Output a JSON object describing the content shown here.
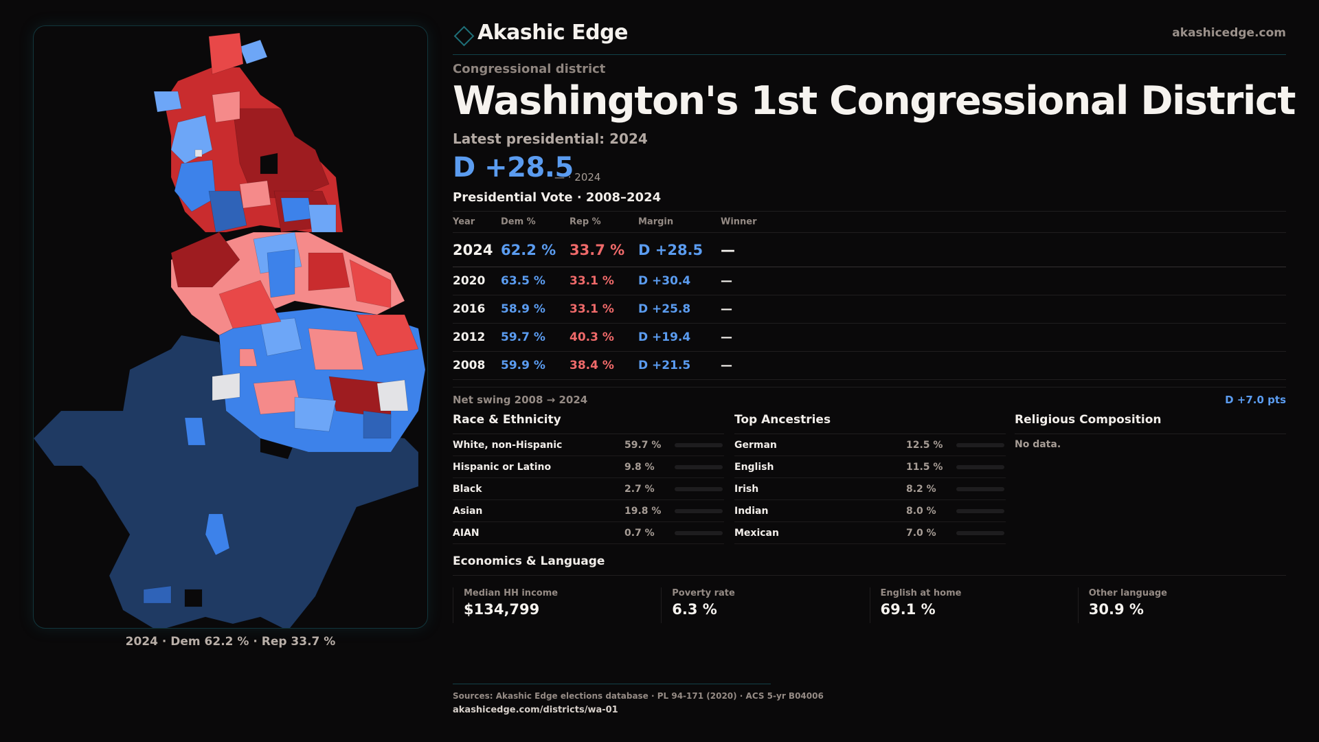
{
  "brand": {
    "name": "Akashic Edge",
    "site": "akashicedge.com",
    "logo_icon": "diamond-outline"
  },
  "page": {
    "kicker": "Congressional district",
    "title": "Washington's 1st Congressional District",
    "latest_label": "Latest presidential: 2024",
    "headline_margin": "D +28.5",
    "headline_sub": "— · 2024"
  },
  "map": {
    "caption": "2024 · Dem 62.2 % · Rep 33.7 %",
    "colors": {
      "dem_strong": "#1f3a63",
      "dem_mid": "#2f63b8",
      "dem": "#3d82ea",
      "dem_light": "#6da6f7",
      "rep_strong": "#9e1c20",
      "rep_mid": "#c92c2e",
      "rep": "#e84848",
      "rep_light": "#f58a8a",
      "tossup": "#e3e3e6"
    }
  },
  "vote_table": {
    "title": "Presidential Vote · 2008–2024",
    "headers": {
      "year": "Year",
      "dem": "Dem %",
      "rep": "Rep %",
      "margin": "Margin",
      "winner": "Winner"
    },
    "rows": [
      {
        "year": "2024",
        "dem": "62.2 %",
        "rep": "33.7 %",
        "margin": "D +28.5",
        "winner": "—"
      },
      {
        "year": "2020",
        "dem": "63.5 %",
        "rep": "33.1 %",
        "margin": "D +30.4",
        "winner": "—"
      },
      {
        "year": "2016",
        "dem": "58.9 %",
        "rep": "33.1 %",
        "margin": "D +25.8",
        "winner": "—"
      },
      {
        "year": "2012",
        "dem": "59.7 %",
        "rep": "40.3 %",
        "margin": "D +19.4",
        "winner": "—"
      },
      {
        "year": "2008",
        "dem": "59.9 %",
        "rep": "38.4 %",
        "margin": "D +21.5",
        "winner": "—"
      }
    ],
    "swing_label": "Net swing 2008 → 2024",
    "swing_value": "D +7.0 pts"
  },
  "race": {
    "title": "Race & Ethnicity",
    "rows": [
      {
        "label": "White, non-Hispanic",
        "value": "59.7 %",
        "pct": 59.7,
        "color": "#8e96a8"
      },
      {
        "label": "Hispanic or Latino",
        "value": "9.8 %",
        "pct": 9.8,
        "color": "#e08a12"
      },
      {
        "label": "Black",
        "value": "2.7 %",
        "pct": 2.7,
        "color": "#9a7ce0"
      },
      {
        "label": "Asian",
        "value": "19.8 %",
        "pct": 19.8,
        "color": "#25b683"
      },
      {
        "label": "AIAN",
        "value": "0.7 %",
        "pct": 0.7,
        "color": "#3a3a3e"
      }
    ]
  },
  "ancestry": {
    "title": "Top Ancestries",
    "rows": [
      {
        "label": "German",
        "value": "12.5 %",
        "pct": 12.5,
        "color": "#8e96a8"
      },
      {
        "label": "English",
        "value": "11.5 %",
        "pct": 11.5,
        "color": "#8e96a8"
      },
      {
        "label": "Irish",
        "value": "8.2 %",
        "pct": 8.2,
        "color": "#8e96a8"
      },
      {
        "label": "Indian",
        "value": "8.0 %",
        "pct": 8.0,
        "color": "#25b683"
      },
      {
        "label": "Mexican",
        "value": "7.0 %",
        "pct": 7.0,
        "color": "#e08a12"
      }
    ]
  },
  "religion": {
    "title": "Religious Composition",
    "empty": "No data."
  },
  "economics": {
    "title": "Economics & Language",
    "cells": [
      {
        "label": "Median HH income",
        "value": "$134,799"
      },
      {
        "label": "Poverty rate",
        "value": "6.3 %"
      },
      {
        "label": "English at home",
        "value": "69.1 %"
      },
      {
        "label": "Other language",
        "value": "30.9 %"
      }
    ]
  },
  "footer": {
    "sources": "Sources: Akashic Edge elections database · PL 94-171 (2020) · ACS 5-yr B04006",
    "url": "akashicedge.com/districts/wa-01"
  }
}
